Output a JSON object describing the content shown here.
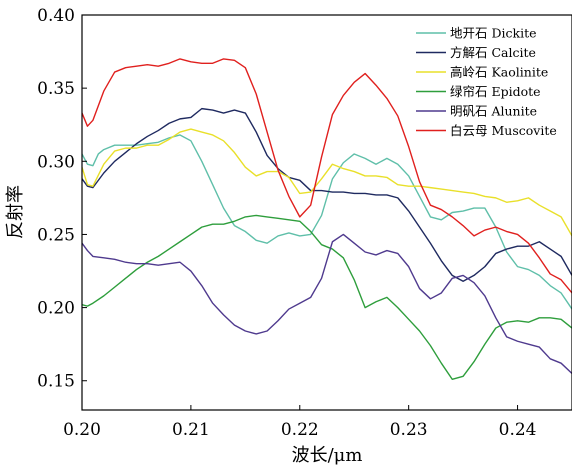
{
  "chart_data": {
    "type": "line",
    "title": "",
    "xlabel": "波长/μm",
    "ylabel": "反射率",
    "xlim": [
      0.2,
      0.245
    ],
    "ylim": [
      0.13,
      0.4
    ],
    "xticks": [
      "0.20",
      "0.21",
      "0.22",
      "0.23",
      "0.24"
    ],
    "yticks": [
      "0.15",
      "0.20",
      "0.25",
      "0.30",
      "0.35",
      "0.40"
    ],
    "grid": false,
    "legend_position": "top-right",
    "series": [
      {
        "name": "地开石 Dickite",
        "color": "#5fbfa9",
        "points": [
          [
            0.2,
            0.305
          ],
          [
            0.2005,
            0.298
          ],
          [
            0.201,
            0.297
          ],
          [
            0.2015,
            0.305
          ],
          [
            0.202,
            0.308
          ],
          [
            0.203,
            0.311
          ],
          [
            0.204,
            0.311
          ],
          [
            0.205,
            0.311
          ],
          [
            0.206,
            0.312
          ],
          [
            0.207,
            0.313
          ],
          [
            0.208,
            0.316
          ],
          [
            0.209,
            0.318
          ],
          [
            0.21,
            0.314
          ],
          [
            0.211,
            0.3
          ],
          [
            0.212,
            0.284
          ],
          [
            0.213,
            0.268
          ],
          [
            0.214,
            0.256
          ],
          [
            0.215,
            0.252
          ],
          [
            0.216,
            0.246
          ],
          [
            0.217,
            0.244
          ],
          [
            0.218,
            0.249
          ],
          [
            0.219,
            0.251
          ],
          [
            0.22,
            0.249
          ],
          [
            0.221,
            0.25
          ],
          [
            0.222,
            0.263
          ],
          [
            0.223,
            0.288
          ],
          [
            0.224,
            0.299
          ],
          [
            0.225,
            0.305
          ],
          [
            0.226,
            0.302
          ],
          [
            0.227,
            0.298
          ],
          [
            0.228,
            0.302
          ],
          [
            0.229,
            0.298
          ],
          [
            0.23,
            0.29
          ],
          [
            0.231,
            0.276
          ],
          [
            0.232,
            0.262
          ],
          [
            0.233,
            0.26
          ],
          [
            0.234,
            0.265
          ],
          [
            0.235,
            0.266
          ],
          [
            0.236,
            0.268
          ],
          [
            0.237,
            0.268
          ],
          [
            0.238,
            0.255
          ],
          [
            0.239,
            0.238
          ],
          [
            0.24,
            0.228
          ],
          [
            0.241,
            0.226
          ],
          [
            0.242,
            0.222
          ],
          [
            0.243,
            0.215
          ],
          [
            0.244,
            0.21
          ],
          [
            0.245,
            0.199
          ]
        ]
      },
      {
        "name": "方解石 Calcite",
        "color": "#1f2a60",
        "points": [
          [
            0.2,
            0.288
          ],
          [
            0.2005,
            0.283
          ],
          [
            0.201,
            0.282
          ],
          [
            0.202,
            0.292
          ],
          [
            0.203,
            0.3
          ],
          [
            0.204,
            0.306
          ],
          [
            0.205,
            0.312
          ],
          [
            0.206,
            0.317
          ],
          [
            0.207,
            0.321
          ],
          [
            0.208,
            0.326
          ],
          [
            0.209,
            0.329
          ],
          [
            0.21,
            0.33
          ],
          [
            0.211,
            0.336
          ],
          [
            0.212,
            0.335
          ],
          [
            0.213,
            0.333
          ],
          [
            0.214,
            0.335
          ],
          [
            0.215,
            0.333
          ],
          [
            0.216,
            0.32
          ],
          [
            0.217,
            0.304
          ],
          [
            0.218,
            0.295
          ],
          [
            0.219,
            0.289
          ],
          [
            0.22,
            0.287
          ],
          [
            0.221,
            0.28
          ],
          [
            0.222,
            0.28
          ],
          [
            0.223,
            0.279
          ],
          [
            0.224,
            0.279
          ],
          [
            0.225,
            0.278
          ],
          [
            0.226,
            0.278
          ],
          [
            0.227,
            0.277
          ],
          [
            0.228,
            0.277
          ],
          [
            0.229,
            0.275
          ],
          [
            0.23,
            0.266
          ],
          [
            0.231,
            0.255
          ],
          [
            0.232,
            0.244
          ],
          [
            0.233,
            0.232
          ],
          [
            0.234,
            0.222
          ],
          [
            0.235,
            0.218
          ],
          [
            0.236,
            0.222
          ],
          [
            0.237,
            0.228
          ],
          [
            0.238,
            0.237
          ],
          [
            0.239,
            0.24
          ],
          [
            0.24,
            0.242
          ],
          [
            0.241,
            0.242
          ],
          [
            0.242,
            0.245
          ],
          [
            0.243,
            0.24
          ],
          [
            0.244,
            0.235
          ],
          [
            0.245,
            0.222
          ]
        ]
      },
      {
        "name": "高岭石 Kaolinite",
        "color": "#e9e02a",
        "points": [
          [
            0.2,
            0.296
          ],
          [
            0.2005,
            0.284
          ],
          [
            0.201,
            0.283
          ],
          [
            0.202,
            0.298
          ],
          [
            0.203,
            0.307
          ],
          [
            0.204,
            0.309
          ],
          [
            0.205,
            0.309
          ],
          [
            0.206,
            0.311
          ],
          [
            0.207,
            0.311
          ],
          [
            0.208,
            0.315
          ],
          [
            0.209,
            0.32
          ],
          [
            0.21,
            0.322
          ],
          [
            0.211,
            0.32
          ],
          [
            0.212,
            0.318
          ],
          [
            0.213,
            0.314
          ],
          [
            0.214,
            0.306
          ],
          [
            0.215,
            0.296
          ],
          [
            0.216,
            0.29
          ],
          [
            0.217,
            0.293
          ],
          [
            0.218,
            0.293
          ],
          [
            0.219,
            0.289
          ],
          [
            0.22,
            0.278
          ],
          [
            0.221,
            0.279
          ],
          [
            0.222,
            0.288
          ],
          [
            0.223,
            0.298
          ],
          [
            0.224,
            0.295
          ],
          [
            0.225,
            0.293
          ],
          [
            0.226,
            0.29
          ],
          [
            0.227,
            0.29
          ],
          [
            0.228,
            0.289
          ],
          [
            0.229,
            0.284
          ],
          [
            0.23,
            0.283
          ],
          [
            0.231,
            0.283
          ],
          [
            0.232,
            0.282
          ],
          [
            0.233,
            0.281
          ],
          [
            0.234,
            0.28
          ],
          [
            0.235,
            0.279
          ],
          [
            0.236,
            0.278
          ],
          [
            0.237,
            0.276
          ],
          [
            0.238,
            0.275
          ],
          [
            0.239,
            0.272
          ],
          [
            0.24,
            0.273
          ],
          [
            0.241,
            0.275
          ],
          [
            0.242,
            0.27
          ],
          [
            0.243,
            0.266
          ],
          [
            0.244,
            0.262
          ],
          [
            0.245,
            0.249
          ]
        ]
      },
      {
        "name": "绿帘石 Epidote",
        "color": "#2e9e3c",
        "points": [
          [
            0.2,
            0.202
          ],
          [
            0.2005,
            0.201
          ],
          [
            0.201,
            0.203
          ],
          [
            0.202,
            0.208
          ],
          [
            0.203,
            0.214
          ],
          [
            0.204,
            0.22
          ],
          [
            0.205,
            0.226
          ],
          [
            0.206,
            0.231
          ],
          [
            0.207,
            0.235
          ],
          [
            0.208,
            0.24
          ],
          [
            0.209,
            0.245
          ],
          [
            0.21,
            0.25
          ],
          [
            0.211,
            0.255
          ],
          [
            0.212,
            0.257
          ],
          [
            0.213,
            0.257
          ],
          [
            0.214,
            0.259
          ],
          [
            0.215,
            0.262
          ],
          [
            0.216,
            0.263
          ],
          [
            0.217,
            0.262
          ],
          [
            0.218,
            0.261
          ],
          [
            0.219,
            0.26
          ],
          [
            0.22,
            0.259
          ],
          [
            0.221,
            0.252
          ],
          [
            0.222,
            0.243
          ],
          [
            0.223,
            0.24
          ],
          [
            0.224,
            0.234
          ],
          [
            0.225,
            0.219
          ],
          [
            0.226,
            0.2
          ],
          [
            0.227,
            0.204
          ],
          [
            0.228,
            0.207
          ],
          [
            0.229,
            0.2
          ],
          [
            0.23,
            0.192
          ],
          [
            0.231,
            0.184
          ],
          [
            0.232,
            0.174
          ],
          [
            0.233,
            0.162
          ],
          [
            0.234,
            0.151
          ],
          [
            0.235,
            0.153
          ],
          [
            0.236,
            0.163
          ],
          [
            0.237,
            0.175
          ],
          [
            0.238,
            0.186
          ],
          [
            0.239,
            0.19
          ],
          [
            0.24,
            0.191
          ],
          [
            0.241,
            0.19
          ],
          [
            0.242,
            0.193
          ],
          [
            0.243,
            0.193
          ],
          [
            0.244,
            0.192
          ],
          [
            0.245,
            0.186
          ]
        ]
      },
      {
        "name": "明矾石 Alunite",
        "color": "#4f3a8e",
        "points": [
          [
            0.2,
            0.244
          ],
          [
            0.2005,
            0.239
          ],
          [
            0.201,
            0.235
          ],
          [
            0.202,
            0.234
          ],
          [
            0.203,
            0.233
          ],
          [
            0.204,
            0.231
          ],
          [
            0.205,
            0.23
          ],
          [
            0.206,
            0.23
          ],
          [
            0.207,
            0.229
          ],
          [
            0.208,
            0.23
          ],
          [
            0.209,
            0.231
          ],
          [
            0.21,
            0.225
          ],
          [
            0.211,
            0.215
          ],
          [
            0.212,
            0.203
          ],
          [
            0.213,
            0.195
          ],
          [
            0.214,
            0.188
          ],
          [
            0.215,
            0.184
          ],
          [
            0.216,
            0.182
          ],
          [
            0.217,
            0.184
          ],
          [
            0.218,
            0.191
          ],
          [
            0.219,
            0.199
          ],
          [
            0.22,
            0.203
          ],
          [
            0.221,
            0.207
          ],
          [
            0.222,
            0.22
          ],
          [
            0.223,
            0.245
          ],
          [
            0.224,
            0.25
          ],
          [
            0.225,
            0.244
          ],
          [
            0.226,
            0.238
          ],
          [
            0.227,
            0.236
          ],
          [
            0.228,
            0.239
          ],
          [
            0.229,
            0.237
          ],
          [
            0.23,
            0.228
          ],
          [
            0.231,
            0.213
          ],
          [
            0.232,
            0.206
          ],
          [
            0.233,
            0.21
          ],
          [
            0.234,
            0.22
          ],
          [
            0.235,
            0.222
          ],
          [
            0.236,
            0.217
          ],
          [
            0.237,
            0.208
          ],
          [
            0.238,
            0.193
          ],
          [
            0.239,
            0.18
          ],
          [
            0.24,
            0.177
          ],
          [
            0.241,
            0.175
          ],
          [
            0.242,
            0.173
          ],
          [
            0.243,
            0.165
          ],
          [
            0.244,
            0.162
          ],
          [
            0.245,
            0.155
          ]
        ]
      },
      {
        "name": "白云母 Muscovite",
        "color": "#e0201e",
        "points": [
          [
            0.2,
            0.333
          ],
          [
            0.2005,
            0.324
          ],
          [
            0.201,
            0.328
          ],
          [
            0.202,
            0.348
          ],
          [
            0.203,
            0.361
          ],
          [
            0.204,
            0.364
          ],
          [
            0.205,
            0.365
          ],
          [
            0.206,
            0.366
          ],
          [
            0.207,
            0.365
          ],
          [
            0.208,
            0.367
          ],
          [
            0.209,
            0.37
          ],
          [
            0.21,
            0.368
          ],
          [
            0.211,
            0.367
          ],
          [
            0.212,
            0.367
          ],
          [
            0.213,
            0.37
          ],
          [
            0.214,
            0.369
          ],
          [
            0.215,
            0.364
          ],
          [
            0.216,
            0.346
          ],
          [
            0.217,
            0.32
          ],
          [
            0.218,
            0.294
          ],
          [
            0.219,
            0.276
          ],
          [
            0.22,
            0.262
          ],
          [
            0.221,
            0.27
          ],
          [
            0.222,
            0.303
          ],
          [
            0.223,
            0.332
          ],
          [
            0.224,
            0.345
          ],
          [
            0.225,
            0.354
          ],
          [
            0.226,
            0.36
          ],
          [
            0.227,
            0.352
          ],
          [
            0.228,
            0.343
          ],
          [
            0.229,
            0.331
          ],
          [
            0.23,
            0.31
          ],
          [
            0.231,
            0.286
          ],
          [
            0.232,
            0.27
          ],
          [
            0.233,
            0.267
          ],
          [
            0.234,
            0.262
          ],
          [
            0.235,
            0.256
          ],
          [
            0.236,
            0.249
          ],
          [
            0.237,
            0.253
          ],
          [
            0.238,
            0.255
          ],
          [
            0.239,
            0.252
          ],
          [
            0.24,
            0.25
          ],
          [
            0.241,
            0.244
          ],
          [
            0.242,
            0.234
          ],
          [
            0.243,
            0.223
          ],
          [
            0.244,
            0.219
          ],
          [
            0.245,
            0.21
          ]
        ]
      }
    ]
  }
}
